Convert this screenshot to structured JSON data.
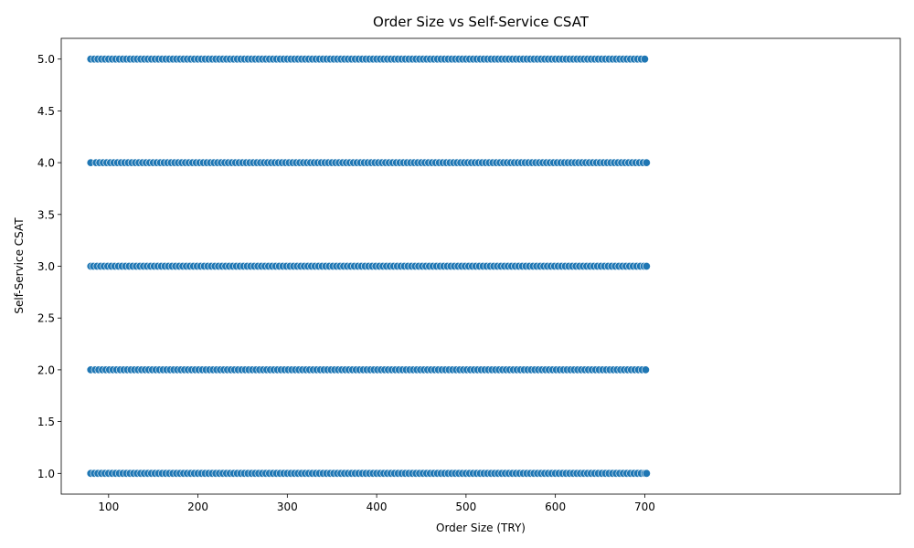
{
  "chart_data": {
    "type": "scatter",
    "title": "Order Size vs Self-Service CSAT",
    "xlabel": "Order Size (TRY)",
    "ylabel": "Self-Service CSAT",
    "xlim": [
      47,
      986
    ],
    "ylim": [
      0.8,
      5.2
    ],
    "xticks": [
      100,
      200,
      300,
      400,
      500,
      600,
      700
    ],
    "xtick_labels": [
      "100",
      "200",
      "300",
      "400",
      "500",
      "600",
      "700"
    ],
    "yticks": [
      1.0,
      1.5,
      2.0,
      2.5,
      3.0,
      3.5,
      4.0,
      4.5,
      5.0
    ],
    "ytick_labels": [
      "1.0",
      "1.5",
      "2.0",
      "2.5",
      "3.0",
      "3.5",
      "4.0",
      "4.5",
      "5.0"
    ],
    "grid": false,
    "marker_color": "#1f77b4",
    "marker_edge_color": "#ffffff",
    "x_range_of_points": [
      80,
      702
    ],
    "series": [
      {
        "csat": 5,
        "x": [
          80,
          84,
          88,
          92,
          96,
          100,
          104,
          108,
          112,
          116,
          120,
          124,
          128,
          132,
          136,
          140,
          144,
          148,
          152,
          156,
          160,
          164,
          168,
          172,
          176,
          180,
          184,
          188,
          192,
          196,
          200,
          204,
          208,
          212,
          216,
          220,
          224,
          228,
          232,
          236,
          240,
          244,
          248,
          252,
          256,
          260,
          264,
          268,
          272,
          276,
          280,
          284,
          288,
          292,
          296,
          300,
          304,
          308,
          312,
          316,
          320,
          324,
          328,
          332,
          336,
          340,
          344,
          348,
          352,
          356,
          360,
          364,
          368,
          372,
          376,
          380,
          384,
          388,
          392,
          396,
          400,
          404,
          408,
          412,
          416,
          420,
          424,
          428,
          432,
          436,
          440,
          444,
          448,
          452,
          456,
          460,
          464,
          468,
          472,
          476,
          480,
          484,
          488,
          492,
          496,
          500,
          504,
          508,
          512,
          516,
          520,
          524,
          528,
          532,
          536,
          540,
          544,
          548,
          552,
          556,
          560,
          564,
          568,
          572,
          576,
          580,
          584,
          588,
          592,
          596,
          600,
          604,
          608,
          612,
          616,
          620,
          624,
          628,
          632,
          636,
          640,
          644,
          648,
          652,
          656,
          660,
          664,
          668,
          672,
          676,
          680,
          684,
          688,
          692,
          696,
          700
        ]
      },
      {
        "csat": 4,
        "x": [
          80,
          86,
          90,
          94,
          98,
          102,
          106,
          110,
          114,
          118,
          122,
          126,
          130,
          134,
          138,
          142,
          146,
          150,
          154,
          158,
          162,
          166,
          170,
          174,
          178,
          182,
          186,
          190,
          194,
          198,
          202,
          206,
          210,
          214,
          218,
          222,
          226,
          230,
          234,
          238,
          242,
          246,
          250,
          254,
          258,
          262,
          266,
          270,
          274,
          278,
          282,
          286,
          290,
          294,
          298,
          302,
          306,
          310,
          314,
          318,
          322,
          326,
          330,
          334,
          338,
          342,
          346,
          350,
          354,
          358,
          362,
          366,
          370,
          374,
          378,
          382,
          386,
          390,
          394,
          398,
          402,
          406,
          410,
          414,
          418,
          422,
          426,
          430,
          434,
          438,
          442,
          446,
          450,
          454,
          458,
          462,
          466,
          470,
          474,
          478,
          482,
          486,
          490,
          494,
          498,
          502,
          506,
          510,
          514,
          518,
          522,
          526,
          530,
          534,
          538,
          542,
          546,
          550,
          554,
          558,
          562,
          566,
          570,
          574,
          578,
          582,
          586,
          590,
          594,
          598,
          602,
          606,
          610,
          614,
          618,
          622,
          626,
          630,
          634,
          638,
          642,
          646,
          650,
          654,
          658,
          662,
          666,
          670,
          674,
          678,
          682,
          686,
          690,
          694,
          698,
          702
        ]
      },
      {
        "csat": 3,
        "x": [
          80,
          83,
          87,
          91,
          95,
          99,
          103,
          107,
          111,
          115,
          119,
          123,
          127,
          131,
          135,
          139,
          143,
          147,
          151,
          155,
          159,
          163,
          167,
          171,
          175,
          179,
          183,
          187,
          191,
          195,
          199,
          203,
          207,
          211,
          215,
          219,
          223,
          227,
          231,
          235,
          239,
          243,
          247,
          251,
          255,
          259,
          263,
          267,
          271,
          275,
          279,
          283,
          287,
          291,
          295,
          299,
          303,
          307,
          311,
          315,
          319,
          323,
          327,
          331,
          335,
          339,
          343,
          347,
          351,
          355,
          359,
          363,
          367,
          371,
          375,
          379,
          383,
          387,
          391,
          395,
          399,
          403,
          407,
          411,
          415,
          419,
          423,
          427,
          431,
          435,
          439,
          443,
          447,
          451,
          455,
          459,
          463,
          467,
          471,
          475,
          479,
          483,
          487,
          491,
          495,
          499,
          503,
          507,
          511,
          515,
          519,
          523,
          527,
          531,
          535,
          539,
          543,
          547,
          551,
          555,
          559,
          563,
          567,
          571,
          575,
          579,
          583,
          587,
          591,
          595,
          599,
          603,
          607,
          611,
          615,
          619,
          623,
          627,
          631,
          635,
          639,
          643,
          647,
          651,
          655,
          659,
          663,
          667,
          671,
          675,
          679,
          683,
          687,
          691,
          695,
          699,
          702
        ]
      },
      {
        "csat": 2,
        "x": [
          80,
          85,
          89,
          93,
          97,
          101,
          105,
          109,
          113,
          117,
          121,
          125,
          129,
          133,
          137,
          141,
          145,
          149,
          153,
          157,
          161,
          165,
          169,
          173,
          177,
          181,
          185,
          189,
          193,
          197,
          201,
          205,
          209,
          213,
          217,
          221,
          225,
          229,
          233,
          237,
          241,
          245,
          249,
          253,
          257,
          261,
          265,
          269,
          273,
          277,
          281,
          285,
          289,
          293,
          297,
          301,
          305,
          309,
          313,
          317,
          321,
          325,
          329,
          333,
          337,
          341,
          345,
          349,
          353,
          357,
          361,
          365,
          369,
          373,
          377,
          381,
          385,
          389,
          393,
          397,
          401,
          405,
          409,
          413,
          417,
          421,
          425,
          429,
          433,
          437,
          441,
          445,
          449,
          453,
          457,
          461,
          465,
          469,
          473,
          477,
          481,
          485,
          489,
          493,
          497,
          501,
          505,
          509,
          513,
          517,
          521,
          525,
          529,
          533,
          537,
          541,
          545,
          549,
          553,
          557,
          561,
          565,
          569,
          573,
          577,
          581,
          585,
          589,
          593,
          597,
          601,
          605,
          609,
          613,
          617,
          621,
          625,
          629,
          633,
          637,
          641,
          645,
          649,
          653,
          657,
          661,
          665,
          669,
          673,
          677,
          681,
          685,
          689,
          693,
          697,
          701
        ]
      },
      {
        "csat": 1,
        "x": [
          80,
          84,
          88,
          92,
          96,
          100,
          104,
          108,
          112,
          116,
          120,
          124,
          128,
          132,
          136,
          140,
          144,
          148,
          152,
          156,
          160,
          164,
          168,
          172,
          176,
          180,
          184,
          188,
          192,
          196,
          200,
          204,
          208,
          212,
          216,
          220,
          224,
          228,
          232,
          236,
          240,
          244,
          248,
          252,
          256,
          260,
          264,
          268,
          272,
          276,
          280,
          284,
          288,
          292,
          296,
          300,
          304,
          308,
          312,
          316,
          320,
          324,
          328,
          332,
          336,
          340,
          344,
          348,
          352,
          356,
          360,
          364,
          368,
          372,
          376,
          380,
          384,
          388,
          392,
          396,
          400,
          404,
          408,
          412,
          416,
          420,
          424,
          428,
          432,
          436,
          440,
          444,
          448,
          452,
          456,
          460,
          464,
          468,
          472,
          476,
          480,
          484,
          488,
          492,
          496,
          500,
          504,
          508,
          512,
          516,
          520,
          524,
          528,
          532,
          536,
          540,
          544,
          548,
          552,
          556,
          560,
          564,
          568,
          572,
          576,
          580,
          584,
          588,
          592,
          596,
          600,
          604,
          608,
          612,
          616,
          620,
          624,
          628,
          632,
          636,
          640,
          644,
          648,
          652,
          656,
          660,
          664,
          668,
          672,
          676,
          680,
          684,
          688,
          692,
          696,
          700,
          702
        ]
      }
    ]
  }
}
